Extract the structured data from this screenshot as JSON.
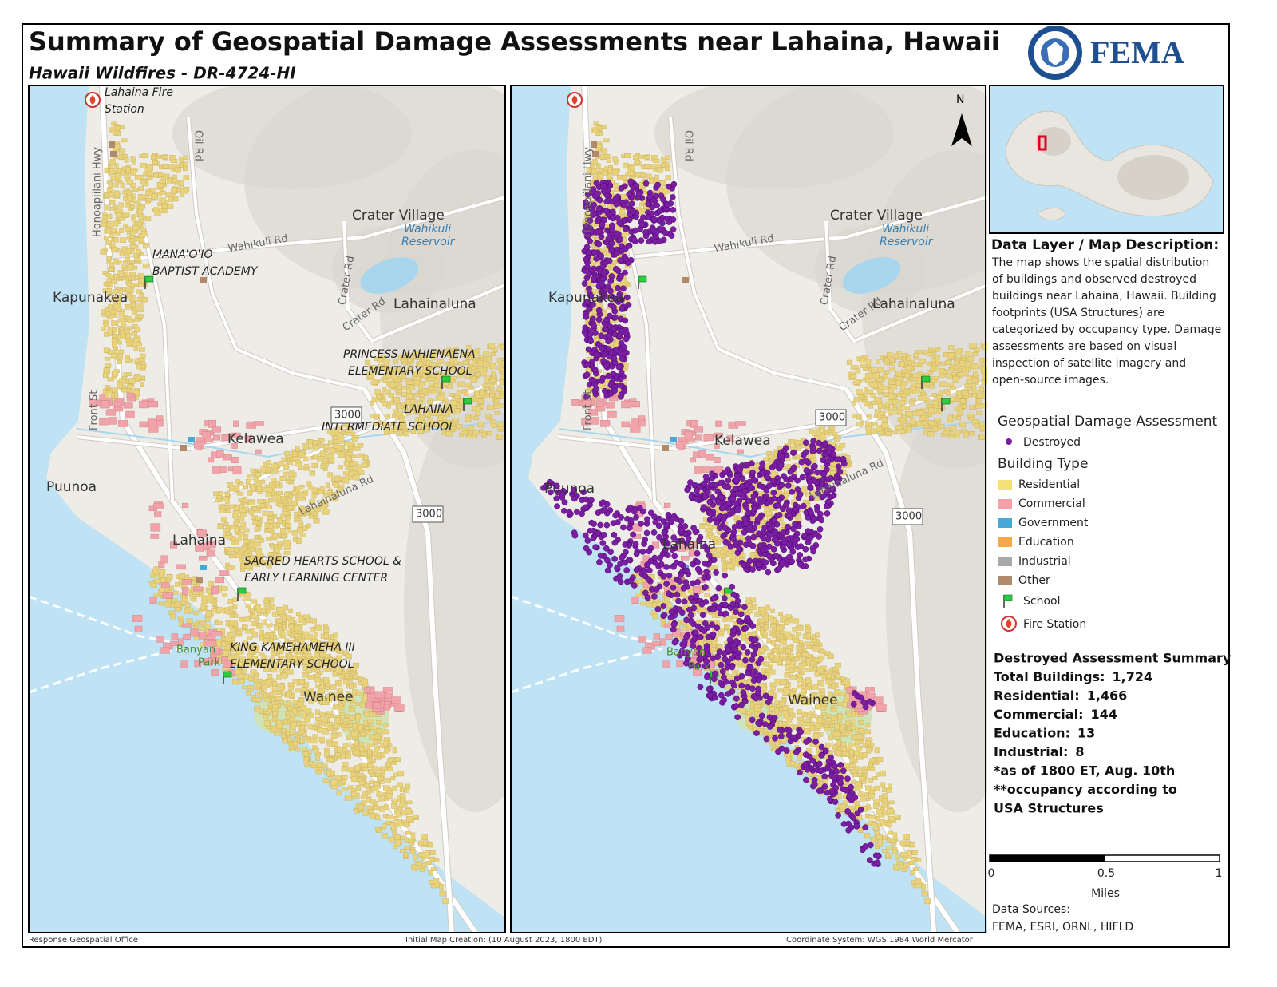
{
  "header": {
    "title": "Summary of Geospatial Damage Assessments near Lahaina, Hawaii",
    "subtitle": "Hawaii Wildfires - DR-4724-HI",
    "agency": "FEMA"
  },
  "left_map": {
    "labels": [
      "Lahaina Fire",
      "Station",
      "Oil Rd",
      "Honoapiilani Hwy",
      "Crater Village",
      "Wahikuli",
      "Reservoir",
      "Wahikuli Rd",
      "MANA'O'IO",
      "BAPTIST ACADEMY",
      "Crater Rd",
      "Kapunakea",
      "Crater Rd",
      "Lahainaluna",
      "PRINCESS NAHIENAENA",
      "ELEMENTARY SCHOOL",
      "Front St",
      "LAHAINA",
      "INTERMEDIATE SCHOOL",
      "3000",
      "Kelawea",
      "Puunoa",
      "Lahainaluna Rd",
      "3000",
      "Lahaina",
      "SACRED HEARTS SCHOOL &",
      "EARLY LEARNING CENTER",
      "Banyan",
      "Park",
      "KING KAMEHAMEHA III",
      "ELEMENTARY SCHOOL",
      "Wainee"
    ]
  },
  "right_map": {
    "labels": [
      "N",
      "Oil Rd",
      "Honoapiilani Hwy",
      "Crater Village",
      "Wahikuli",
      "Reservoir",
      "Wahikuli Rd",
      "Crater Rd",
      "Crater Rd",
      "Kapunakea",
      "Lahainaluna",
      "Front St",
      "3000",
      "Kelawea",
      "Puunoa",
      "Lahainaluna Rd",
      "3000",
      "Lahaina",
      "Banyan",
      "Park",
      "Wainee"
    ]
  },
  "description": {
    "title": "Data Layer / Map Description:",
    "lines": [
      "The map shows the spatial distribution",
      "of buildings and observed destroyed",
      "buildings near Lahaina, Hawaii. Building",
      "footprints (USA Structures) are",
      "categorized by occupancy type. Damage",
      "assessments are based on visual",
      "inspection of satellite imagery and",
      "open-source images."
    ]
  },
  "legend": {
    "damage_title": "Geospatial Damage Assessment",
    "damage_item": {
      "label": "Destroyed",
      "color": "#7b1fa2"
    },
    "building_title": "Building Type",
    "building_items": [
      {
        "label": "Residential",
        "color": "#f5e07a"
      },
      {
        "label": "Commercial",
        "color": "#f4a0a6"
      },
      {
        "label": "Government",
        "color": "#4aa8d8"
      },
      {
        "label": "Education",
        "color": "#f5a94a"
      },
      {
        "label": "Industrial",
        "color": "#a9a9a9"
      },
      {
        "label": "Other",
        "color": "#b08a6a"
      }
    ],
    "school": "School",
    "fire_station": "Fire Station"
  },
  "summary": {
    "title": "Destroyed Assessment Summary",
    "rows": [
      {
        "label": "Total Buildings:",
        "value": "1,724"
      },
      {
        "label": "Residential:",
        "value": "1,466"
      },
      {
        "label": "Commercial:",
        "value": "144"
      },
      {
        "label": "Education:",
        "value": "13"
      },
      {
        "label": "Industrial:",
        "value": "8"
      }
    ],
    "notes": [
      "*as of 1800 ET, Aug. 10th",
      "**occupancy according to",
      "USA Structures"
    ]
  },
  "scale_bar": {
    "labels": [
      "0",
      "0.5",
      "1"
    ],
    "unit": "Miles"
  },
  "sources": {
    "title": "Data Sources:",
    "text": "FEMA, ESRI, ORNL, HIFLD"
  },
  "footer": {
    "office": "Response Geospatial Office",
    "created": "Initial Map Creation: (10 August 2023, 1800 EDT)",
    "coordinates": "Coordinate System: WGS 1984 World Mercator"
  }
}
